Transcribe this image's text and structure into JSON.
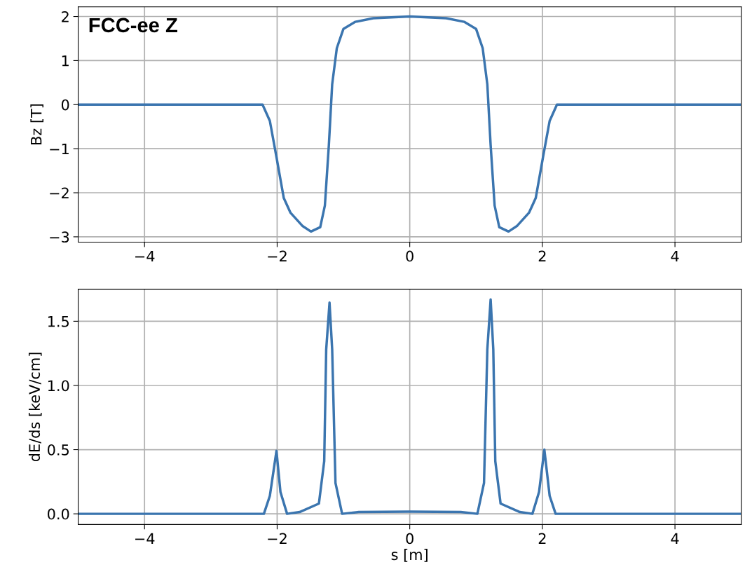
{
  "chart_data": [
    {
      "type": "line",
      "annotations": [
        "FCC-ee Z"
      ],
      "ylabel": "Bz [T]",
      "xlim": [
        -5,
        5
      ],
      "xticks": [
        -4,
        -2,
        0,
        2,
        4
      ],
      "ylim": [
        -3.12,
        2.22
      ],
      "yticks": [
        -3,
        -2,
        -1,
        0,
        1,
        2
      ],
      "grid": true,
      "series": [
        {
          "color": "#3b75af",
          "x": [
            -5,
            -2.22,
            -2.11,
            -2.01,
            -1.9,
            -1.8,
            -1.62,
            -1.49,
            -1.35,
            -1.28,
            -1.22,
            -1.17,
            -1.1,
            -1.0,
            -0.82,
            -0.55,
            0,
            0.55,
            0.82,
            1.0,
            1.1,
            1.17,
            1.22,
            1.28,
            1.35,
            1.49,
            1.62,
            1.8,
            1.9,
            2.01,
            2.11,
            2.22,
            5
          ],
          "values": [
            0,
            0,
            -0.37,
            -1.19,
            -2.12,
            -2.45,
            -2.75,
            -2.88,
            -2.78,
            -2.29,
            -0.92,
            0.46,
            1.28,
            1.72,
            1.88,
            1.96,
            2.0,
            1.96,
            1.88,
            1.72,
            1.28,
            0.46,
            -0.92,
            -2.29,
            -2.78,
            -2.88,
            -2.75,
            -2.45,
            -2.12,
            -1.19,
            -0.37,
            0,
            0
          ]
        }
      ]
    },
    {
      "type": "line",
      "xlabel": "s [m]",
      "ylabel": "dE/ds [keV/cm]",
      "xlim": [
        -5,
        5
      ],
      "xticks": [
        -4,
        -2,
        0,
        2,
        4
      ],
      "ylim": [
        -0.083,
        1.75
      ],
      "yticks": [
        {
          "value": 0,
          "label": "0.0"
        },
        0.5,
        {
          "value": 1,
          "label": "1.0"
        },
        1.5
      ],
      "grid": true,
      "series": [
        {
          "color": "#3b75af",
          "x": [
            -5,
            -2.2,
            -2.11,
            -2.01,
            -1.95,
            -1.85,
            -1.66,
            -1.37,
            -1.29,
            -1.26,
            -1.21,
            -1.17,
            -1.12,
            -1.02,
            -0.77,
            0,
            0.77,
            1.02,
            1.12,
            1.17,
            1.22,
            1.26,
            1.29,
            1.37,
            1.66,
            1.85,
            1.95,
            2.03,
            2.11,
            2.2,
            5
          ],
          "values": [
            0,
            0,
            0.14,
            0.49,
            0.17,
            0,
            0.014,
            0.08,
            0.41,
            1.28,
            1.645,
            1.28,
            0.24,
            0,
            0.014,
            0.017,
            0.014,
            0,
            0.24,
            1.28,
            1.67,
            1.28,
            0.41,
            0.08,
            0.014,
            0,
            0.17,
            0.5,
            0.14,
            0,
            0
          ]
        }
      ]
    }
  ]
}
